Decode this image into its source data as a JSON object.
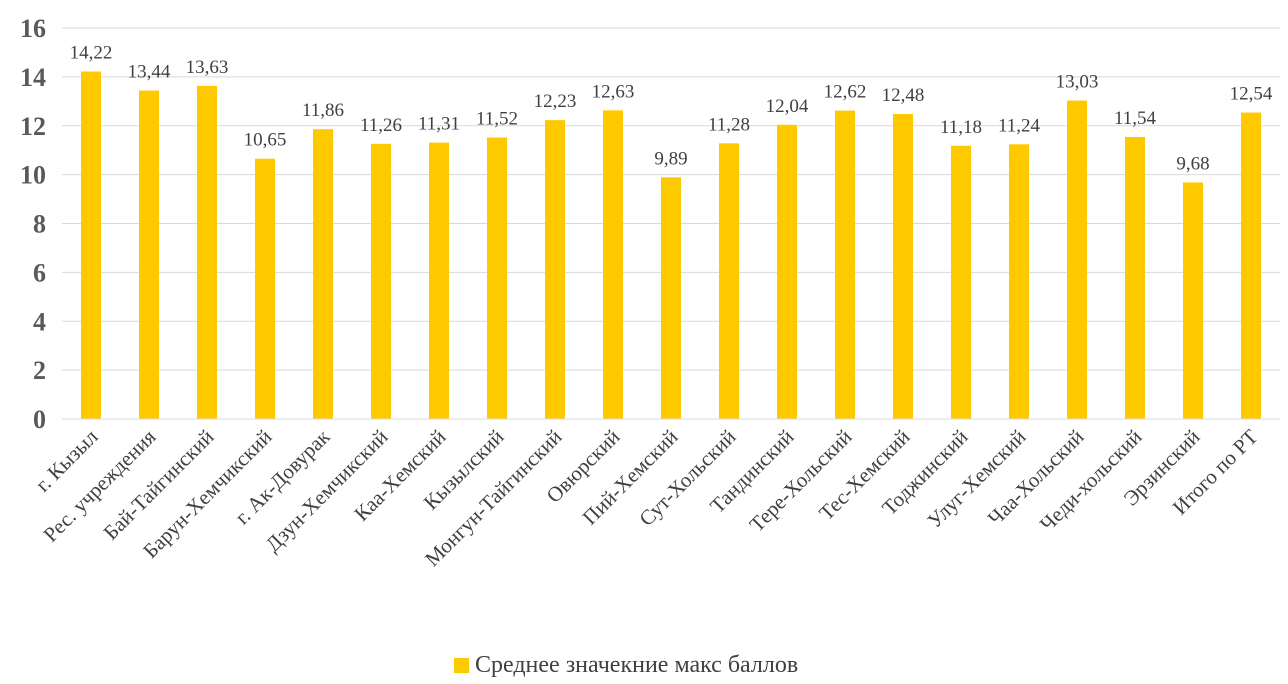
{
  "chart_data": {
    "type": "bar",
    "categories": [
      "г. Кызыл",
      "Рес. учреждения",
      "Бай-Тайгинский",
      "Барун-Хемчикский",
      "г. Ак-Довурак",
      "Дзун-Хемчикский",
      "Каа-Хемский",
      "Кызылский",
      "Монгун-Тайгинский",
      "Овюрский",
      "Пий-Хемский",
      "Сут-Хольский",
      "Тандинский",
      "Тере-Хольский",
      "Тес-Хемский",
      "Тоджинский",
      "Улуг-Хемский",
      "Чаа-Хольский",
      "Чеди-хольский",
      "Эрзинский",
      "Итого по РТ"
    ],
    "series": [
      {
        "name": "Среднее значекние макс баллов",
        "values": [
          14.22,
          13.44,
          13.63,
          10.65,
          11.86,
          11.26,
          11.31,
          11.52,
          12.23,
          12.63,
          9.89,
          11.28,
          12.04,
          12.62,
          12.48,
          11.18,
          11.24,
          13.03,
          11.54,
          9.68,
          12.54
        ],
        "labels": [
          "14,22",
          "13,44",
          "13,63",
          "10,65",
          "11,86",
          "11,26",
          "11,31",
          "11,52",
          "12,23",
          "12,63",
          "9,89",
          "11,28",
          "12,04",
          "12,62",
          "12,48",
          "11,18",
          "11,24",
          "13,03",
          "11,54",
          "9,68",
          "12,54"
        ],
        "color": "#FFC900"
      }
    ],
    "yticks": [
      "0",
      "2",
      "4",
      "6",
      "8",
      "10",
      "12",
      "14",
      "16"
    ],
    "ylim": [
      0,
      16
    ],
    "grid": true,
    "legend_position": "bottom",
    "title": "",
    "xlabel": "",
    "ylabel": ""
  }
}
